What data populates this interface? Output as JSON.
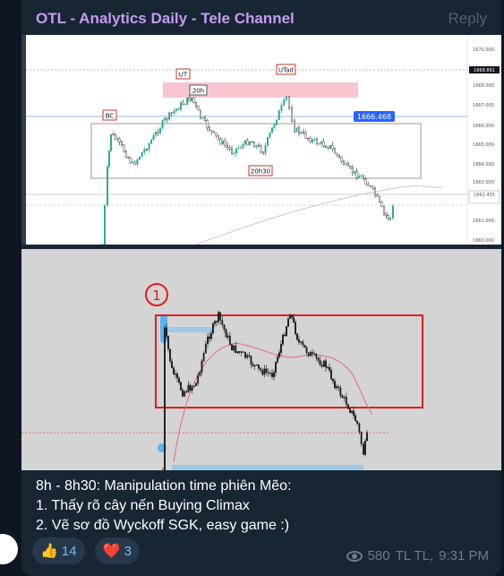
{
  "header": {
    "channel_title": "OTL - Analytics Daily - Tele Channel",
    "reply_label": "Reply"
  },
  "chart_top": {
    "labels": {
      "bc": "BC",
      "ut": "UT",
      "utad": "UTad",
      "h20": "20h",
      "h20h30": "20h30",
      "price_marker": "1666.468"
    },
    "price_axis": [
      "1670.000",
      "1668.891",
      "1668.000",
      "1667.000",
      "1666.000",
      "1665.000",
      "1664.000",
      "1663.000",
      "1662.455",
      "1661.000",
      "1660.000"
    ],
    "colors": {
      "up": "#26a69a",
      "down": "#222222",
      "zone": "#f7c6d1",
      "price_marker": "#2962ff"
    }
  },
  "chart_bottom": {
    "annotation": "1",
    "colors": {
      "box": "#e11d1d",
      "marker": "#5cb3f0",
      "ma": "#e06b86"
    }
  },
  "caption": {
    "line1": "8h - 8h30: Manipulation time phiên Mẽo:",
    "line2": "1. Thấy rõ cây nến Buying Climax",
    "line3": "2. Vẽ sơ đồ Wyckoff SGK, easy game :)"
  },
  "reactions": [
    {
      "emoji": "👍",
      "count": "14"
    },
    {
      "emoji": "❤️",
      "count": "3"
    }
  ],
  "meta": {
    "views": "580",
    "author": "TL TL,",
    "time": "9:31 PM"
  }
}
